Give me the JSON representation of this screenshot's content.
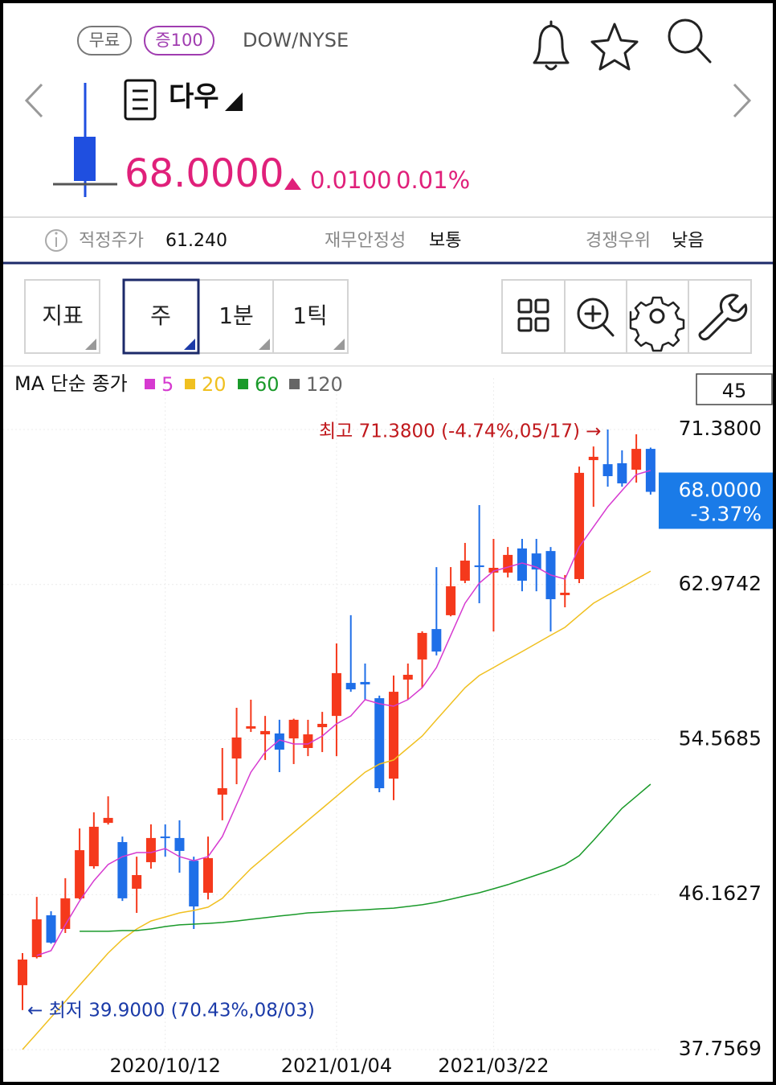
{
  "header": {
    "badges": [
      "무료",
      "증100"
    ],
    "exchange": "DOW/NYSE",
    "name": "다우",
    "price": "68.0000",
    "change": "0.0100",
    "change_pct": "0.01%"
  },
  "info": [
    {
      "label": "적정주가",
      "value": "61.240"
    },
    {
      "label": "재무안정성",
      "value": "보통"
    },
    {
      "label": "경쟁우위",
      "value": "낮음"
    }
  ],
  "toolbar": {
    "tabs": [
      "지표",
      "주",
      "1분",
      "1틱"
    ]
  },
  "chart_data": {
    "type": "candlestick",
    "legend_title": "MA 단순 종가",
    "count": 45,
    "categories": [
      null,
      null,
      null,
      null,
      null,
      null,
      null,
      null,
      null,
      null,
      "2020/10/12",
      null,
      null,
      null,
      null,
      null,
      null,
      null,
      null,
      null,
      null,
      null,
      "2021/01/04",
      null,
      null,
      null,
      null,
      null,
      null,
      null,
      null,
      null,
      null,
      "2021/03/22",
      null,
      null,
      null,
      null,
      null,
      null,
      null,
      null,
      null,
      null,
      null
    ],
    "open": [
      41.25,
      42.77,
      45.04,
      44.3,
      45.96,
      47.7,
      50.05,
      49.01,
      46.48,
      47.92,
      49.31,
      49.23,
      48.0,
      46.26,
      51.58,
      53.54,
      55.16,
      54.85,
      54.9,
      54.63,
      54.11,
      55.24,
      55.85,
      57.64,
      57.69,
      56.81,
      52.45,
      57.82,
      58.91,
      60.56,
      61.31,
      63.18,
      64.01,
      63.62,
      63.62,
      64.93,
      64.66,
      64.79,
      62.4,
      63.27,
      69.72,
      69.5,
      69.55,
      69.2,
      70.33
    ],
    "high": [
      42.99,
      46.04,
      45.26,
      47.05,
      49.75,
      50.62,
      51.49,
      49.31,
      48.22,
      49.97,
      49.97,
      50.19,
      48.22,
      49.31,
      54.11,
      56.29,
      56.73,
      55.85,
      55.64,
      55.7,
      55.64,
      56.07,
      59.78,
      61.31,
      58.69,
      56.95,
      58.04,
      58.69,
      60.44,
      63.92,
      63.92,
      65.23,
      67.28,
      65.45,
      65.01,
      65.45,
      65.45,
      65.01,
      63.49,
      69.37,
      70.46,
      71.38,
      70.25,
      71.12,
      70.4
    ],
    "low": [
      39.9,
      42.7,
      43.5,
      44.08,
      45.9,
      47.57,
      49.96,
      45.82,
      45.17,
      47.57,
      48.22,
      47.35,
      44.3,
      45.9,
      50.19,
      52.15,
      54.98,
      53.46,
      52.8,
      53.24,
      53.67,
      53.89,
      53.67,
      57.16,
      56.73,
      51.71,
      51.28,
      56.73,
      57.38,
      59.13,
      61.25,
      63.05,
      61.96,
      60.43,
      63.36,
      62.61,
      62.61,
      60.43,
      61.74,
      63.05,
      67.19,
      68.28,
      68.28,
      68.5,
      67.85
    ],
    "close": [
      42.64,
      44.82,
      43.56,
      45.96,
      48.57,
      49.84,
      50.32,
      45.96,
      47.22,
      49.23,
      49.23,
      48.53,
      45.52,
      48.14,
      51.93,
      54.68,
      55.29,
      55.03,
      54.02,
      55.64,
      54.85,
      55.42,
      58.17,
      57.29,
      57.56,
      51.93,
      57.16,
      58.08,
      60.35,
      59.34,
      62.88,
      64.27,
      63.92,
      63.88,
      64.58,
      63.18,
      63.79,
      62.18,
      62.53,
      69.03,
      69.9,
      68.85,
      68.46,
      70.33,
      68.0
    ],
    "up_color": "#f5391c",
    "down_color": "#1f6fe8",
    "series": [
      {
        "name": "5",
        "color": "#d63ad0",
        "values": [
          null,
          42.86,
          43.12,
          44.52,
          45.82,
          46.91,
          47.79,
          48.22,
          48.44,
          48.44,
          48.66,
          48.22,
          48.0,
          48.22,
          49.31,
          51.06,
          52.8,
          53.89,
          54.55,
          54.33,
          54.33,
          54.76,
          55.42,
          55.85,
          56.73,
          56.51,
          56.38,
          56.73,
          57.38,
          58.47,
          60.22,
          61.96,
          63.05,
          63.7,
          63.92,
          64.14,
          63.92,
          63.49,
          63.27,
          65.01,
          66.1,
          67.19,
          68.07,
          68.94,
          69.16
        ]
      },
      {
        "name": "20",
        "color": "#f0c020",
        "values": [
          37.76,
          38.63,
          39.5,
          40.37,
          41.25,
          42.12,
          42.99,
          43.73,
          44.3,
          44.73,
          44.95,
          45.17,
          45.3,
          45.48,
          45.96,
          46.78,
          47.57,
          48.22,
          48.88,
          49.53,
          50.19,
          50.84,
          51.49,
          52.15,
          52.8,
          53.24,
          53.46,
          54.11,
          54.76,
          55.64,
          56.51,
          57.38,
          58.04,
          58.47,
          58.91,
          59.34,
          59.78,
          60.22,
          60.65,
          61.31,
          61.96,
          62.4,
          62.83,
          63.27,
          63.7
        ]
      },
      {
        "name": "60",
        "color": "#1a9a2a",
        "values": [
          null,
          null,
          null,
          null,
          44.17,
          44.17,
          44.17,
          44.21,
          44.21,
          44.3,
          44.43,
          44.52,
          44.56,
          44.6,
          44.65,
          44.73,
          44.82,
          44.91,
          45.0,
          45.08,
          45.17,
          45.21,
          45.26,
          45.3,
          45.34,
          45.39,
          45.43,
          45.52,
          45.61,
          45.74,
          45.91,
          46.09,
          46.26,
          46.48,
          46.7,
          46.96,
          47.22,
          47.48,
          47.79,
          48.27,
          49.1,
          49.97,
          50.84,
          51.49,
          52.15
        ]
      },
      {
        "name": "120",
        "color": "#666666",
        "values": [
          null,
          null,
          null,
          null,
          null,
          null,
          null,
          null,
          null,
          null,
          null,
          null,
          null,
          null,
          null,
          null,
          null,
          null,
          null,
          null,
          null,
          null,
          null,
          null,
          null,
          null,
          null,
          null,
          null,
          null,
          null,
          null,
          null,
          null,
          null,
          null,
          null,
          null,
          null,
          null,
          null,
          null,
          null,
          null,
          null
        ]
      }
    ],
    "ylim": [
      37.7569,
      71.38
    ],
    "yticks": [
      {
        "value": 71.38,
        "label": "71.3800"
      },
      {
        "value": 62.9742,
        "label": "62.9742"
      },
      {
        "value": 54.5685,
        "label": "54.5685"
      },
      {
        "value": 46.1627,
        "label": "46.1627"
      },
      {
        "value": 37.7569,
        "label": "37.7569"
      }
    ],
    "grid": true,
    "high_label": {
      "text": "최고 71.3800 (-4.74%,05/17) →",
      "color": "#c0181c"
    },
    "low_label": {
      "text": "← 최저 39.9000 (70.43%,08/03)",
      "color": "#1a3aa8"
    },
    "current": {
      "value": 68.0,
      "label": "68.0000",
      "change_label": "-3.37%",
      "color": "#1a7be8"
    }
  }
}
